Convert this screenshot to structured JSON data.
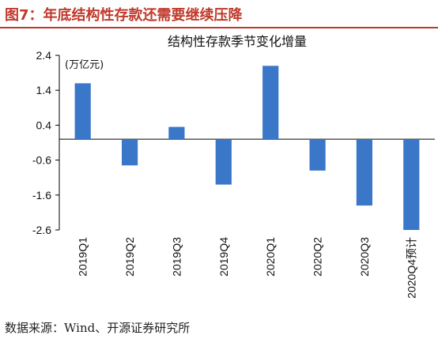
{
  "figure": {
    "title": "图7：年底结构性存款还需要继续压降",
    "source": "数据来源：Wind、开源证券研究所"
  },
  "colors": {
    "bar": "#3a77c9",
    "accent": "#c0392b",
    "axis": "#000000"
  },
  "chart_data": {
    "type": "bar",
    "title": "结构性存款季节变化增量",
    "unit": "(万亿元)",
    "categories": [
      "2019Q1",
      "2019Q2",
      "2019Q3",
      "2019Q4",
      "2020Q1",
      "2020Q2",
      "2020Q3",
      "2020Q4预计"
    ],
    "values": [
      1.6,
      -0.75,
      0.35,
      -1.3,
      2.1,
      -0.9,
      -1.9,
      -2.6
    ],
    "yticks": [
      2.4,
      1.4,
      0.4,
      -0.6,
      -1.6,
      -2.6
    ],
    "ylim": [
      -2.6,
      2.4
    ],
    "grid": false,
    "legend": "none"
  }
}
